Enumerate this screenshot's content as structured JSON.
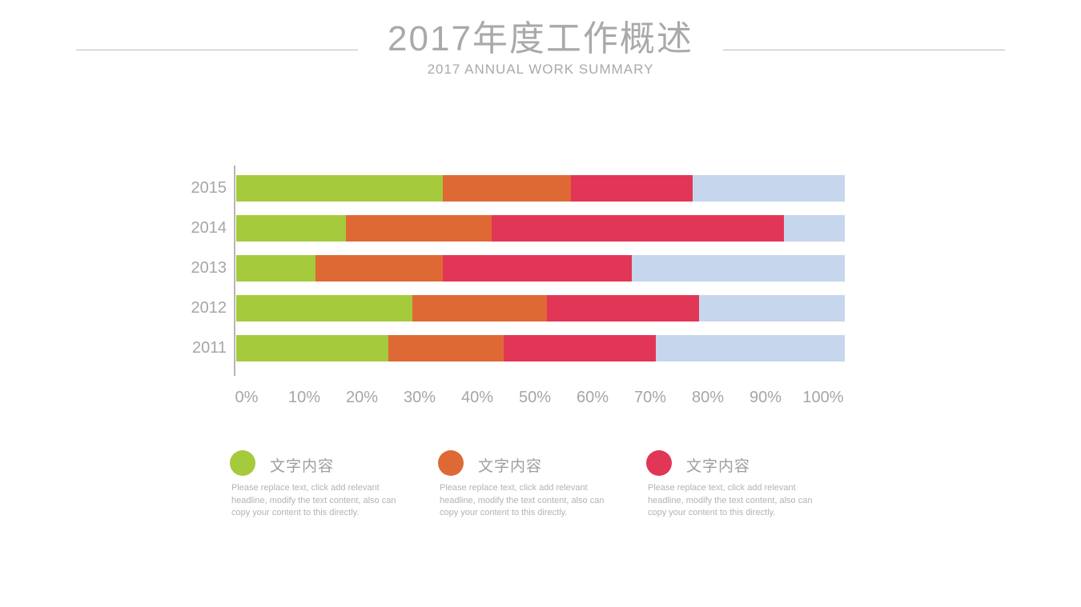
{
  "slide": {
    "title_zh": "2017年度工作概述",
    "title_en": "2017 ANNUAL WORK SUMMARY"
  },
  "chart_data": {
    "type": "bar",
    "orientation": "horizontal",
    "stacked": true,
    "unit": "percent",
    "categories": [
      "2015",
      "2014",
      "2013",
      "2012",
      "2011"
    ],
    "series": [
      {
        "name": "green",
        "color": "#a5ca3c",
        "values": [
          34,
          18,
          13,
          29,
          25
        ]
      },
      {
        "name": "orange",
        "color": "#df6935",
        "values": [
          21,
          24,
          21,
          22,
          19
        ]
      },
      {
        "name": "red",
        "color": "#e23657",
        "values": [
          20,
          48,
          31,
          25,
          25
        ]
      },
      {
        "name": "blue",
        "color": "#c5d6ed",
        "values": [
          25,
          10,
          35,
          24,
          31
        ]
      }
    ],
    "x_ticks": [
      "0%",
      "10%",
      "20%",
      "30%",
      "40%",
      "50%",
      "60%",
      "70%",
      "80%",
      "90%",
      "100%"
    ],
    "xlim": [
      0,
      100
    ],
    "grid": false,
    "legend_position": "bottom"
  },
  "legend": {
    "items": [
      {
        "label": "文字内容",
        "color": "#a5ca3c",
        "description_lines": [
          "Please  replace text, click add relevant",
          "headline,  modify the text content, also can",
          "copy your content to this directly."
        ]
      },
      {
        "label": "文字内容",
        "color": "#df6935",
        "description_lines": [
          "Please  replace text, click add relevant",
          "headline,  modify the text content, also can",
          "copy your content to this directly."
        ]
      },
      {
        "label": "文字内容",
        "color": "#e23657",
        "description_lines": [
          "Please  replace text, click add relevant",
          "headline,  modify the text content, also can",
          "copy your content to this directly."
        ]
      }
    ]
  }
}
